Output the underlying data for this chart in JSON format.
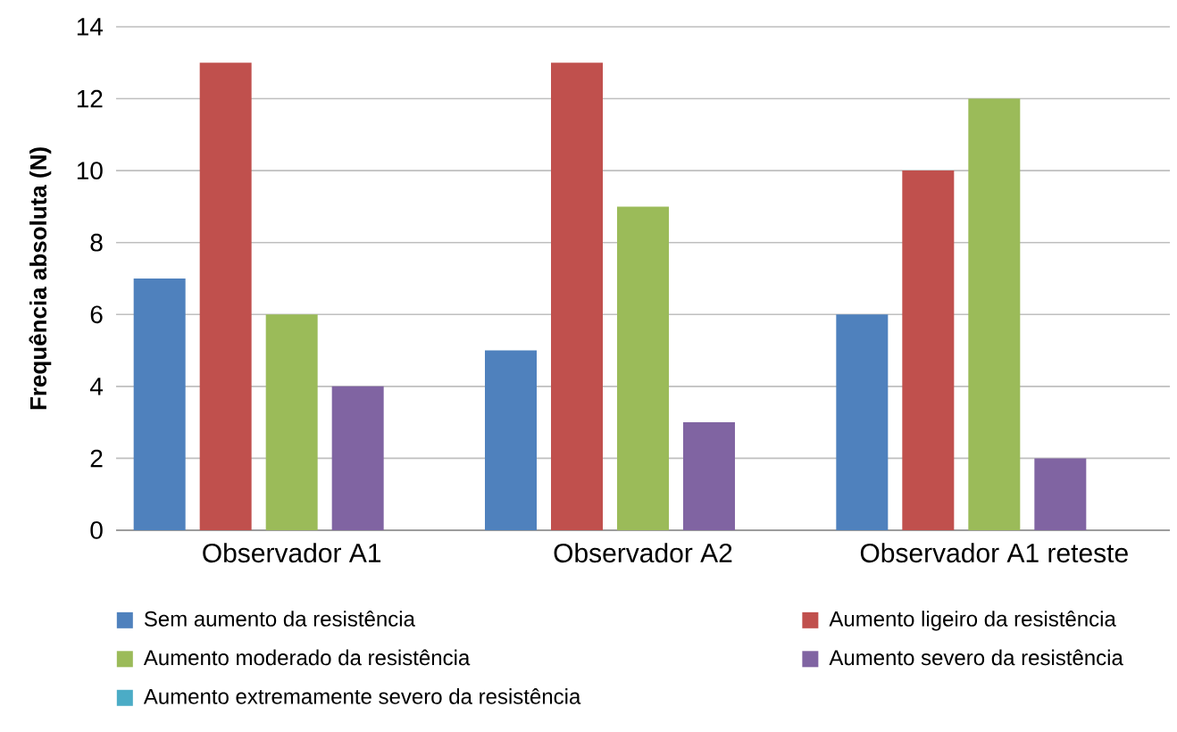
{
  "chart_data": {
    "type": "bar",
    "ylabel": "Frequência absoluta (N)",
    "categories": [
      "Observador A1",
      "Observador A2",
      "Observador A1 reteste"
    ],
    "series": [
      {
        "name": "Sem aumento da resistência",
        "color": "#4f81bd",
        "values": [
          7,
          5,
          6
        ]
      },
      {
        "name": "Aumento ligeiro da resistência",
        "color": "#c0504d",
        "values": [
          13,
          13,
          10
        ]
      },
      {
        "name": "Aumento moderado da resistência",
        "color": "#9bbb59",
        "values": [
          6,
          9,
          12
        ]
      },
      {
        "name": "Aumento severo da resistência",
        "color": "#8064a2",
        "values": [
          4,
          3,
          2
        ]
      },
      {
        "name": "Aumento extremamente severo da resistência",
        "color": "#4bacc6",
        "values": [
          0,
          0,
          0
        ]
      }
    ],
    "ylim": [
      0,
      14
    ],
    "yticks": [
      0,
      2,
      4,
      6,
      8,
      10,
      12,
      14
    ],
    "grid": "y",
    "legend": "bottom"
  }
}
